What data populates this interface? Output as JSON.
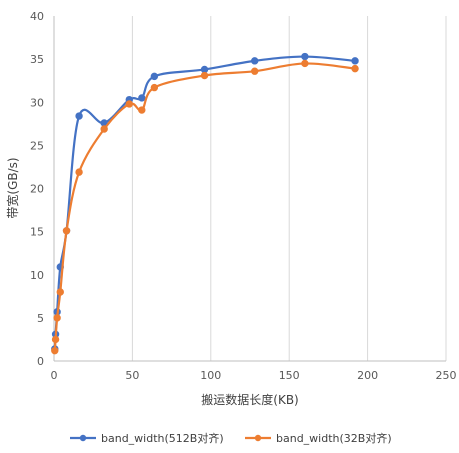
{
  "chart_data": {
    "type": "line",
    "title": "",
    "xlabel": "搬运数据长度(KB)",
    "ylabel": "带宽(GB/s)",
    "xlim": [
      0,
      250
    ],
    "ylim": [
      0,
      40
    ],
    "x_ticks": [
      0,
      50,
      100,
      150,
      200,
      250
    ],
    "y_ticks": [
      0,
      5,
      10,
      15,
      20,
      25,
      30,
      35,
      40
    ],
    "grid": "vertical",
    "smooth": true,
    "legend_position": "bottom",
    "series": [
      {
        "name": "band_width(512B对齐)",
        "color": "#4472C4",
        "x": [
          0.5,
          1,
          2,
          4,
          8,
          16,
          32,
          48,
          56,
          64,
          96,
          128,
          160,
          192
        ],
        "y": [
          1.4,
          3.1,
          5.7,
          10.9,
          15.1,
          28.4,
          27.6,
          30.3,
          30.5,
          33.0,
          33.8,
          34.8,
          35.3,
          34.8
        ]
      },
      {
        "name": "band_width(32B对齐)",
        "color": "#ED7D31",
        "x": [
          0.5,
          1,
          2,
          4,
          8,
          16,
          32,
          48,
          56,
          64,
          96,
          128,
          160,
          192
        ],
        "y": [
          1.2,
          2.5,
          5.0,
          8.0,
          15.1,
          21.9,
          26.9,
          29.8,
          29.1,
          31.7,
          33.1,
          33.6,
          34.5,
          33.9
        ]
      }
    ]
  }
}
